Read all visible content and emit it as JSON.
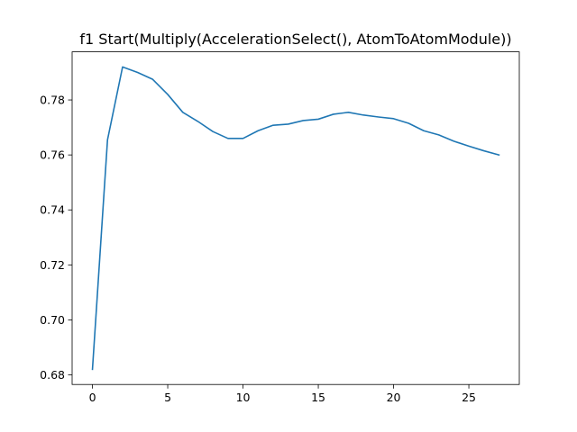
{
  "chart_data": {
    "type": "line",
    "title": "f1 Start(Multiply(AccelerationSelect(), AtomToAtomModule))",
    "xlabel": "",
    "ylabel": "",
    "xlim": [
      -1.35,
      28.35
    ],
    "ylim": [
      0.6765,
      0.7975
    ],
    "xticks": [
      0,
      5,
      10,
      15,
      20,
      25
    ],
    "yticks": [
      0.68,
      0.7,
      0.72,
      0.74,
      0.76,
      0.78
    ],
    "ytick_labels": [
      "0.68",
      "0.70",
      "0.72",
      "0.74",
      "0.76",
      "0.78"
    ],
    "grid": false,
    "series": [
      {
        "color": "#1f77b4",
        "x": [
          0,
          1,
          2,
          3,
          4,
          5,
          6,
          7,
          8,
          9,
          10,
          11,
          12,
          13,
          14,
          15,
          16,
          17,
          18,
          19,
          20,
          21,
          22,
          23,
          24,
          25,
          26,
          27
        ],
        "y": [
          0.682,
          0.7655,
          0.792,
          0.79,
          0.7875,
          0.782,
          0.7755,
          0.7722,
          0.7685,
          0.766,
          0.766,
          0.7688,
          0.7708,
          0.7712,
          0.7725,
          0.773,
          0.7748,
          0.7755,
          0.7745,
          0.7738,
          0.7732,
          0.7715,
          0.7688,
          0.7673,
          0.765,
          0.7632,
          0.7615,
          0.76
        ]
      }
    ]
  }
}
